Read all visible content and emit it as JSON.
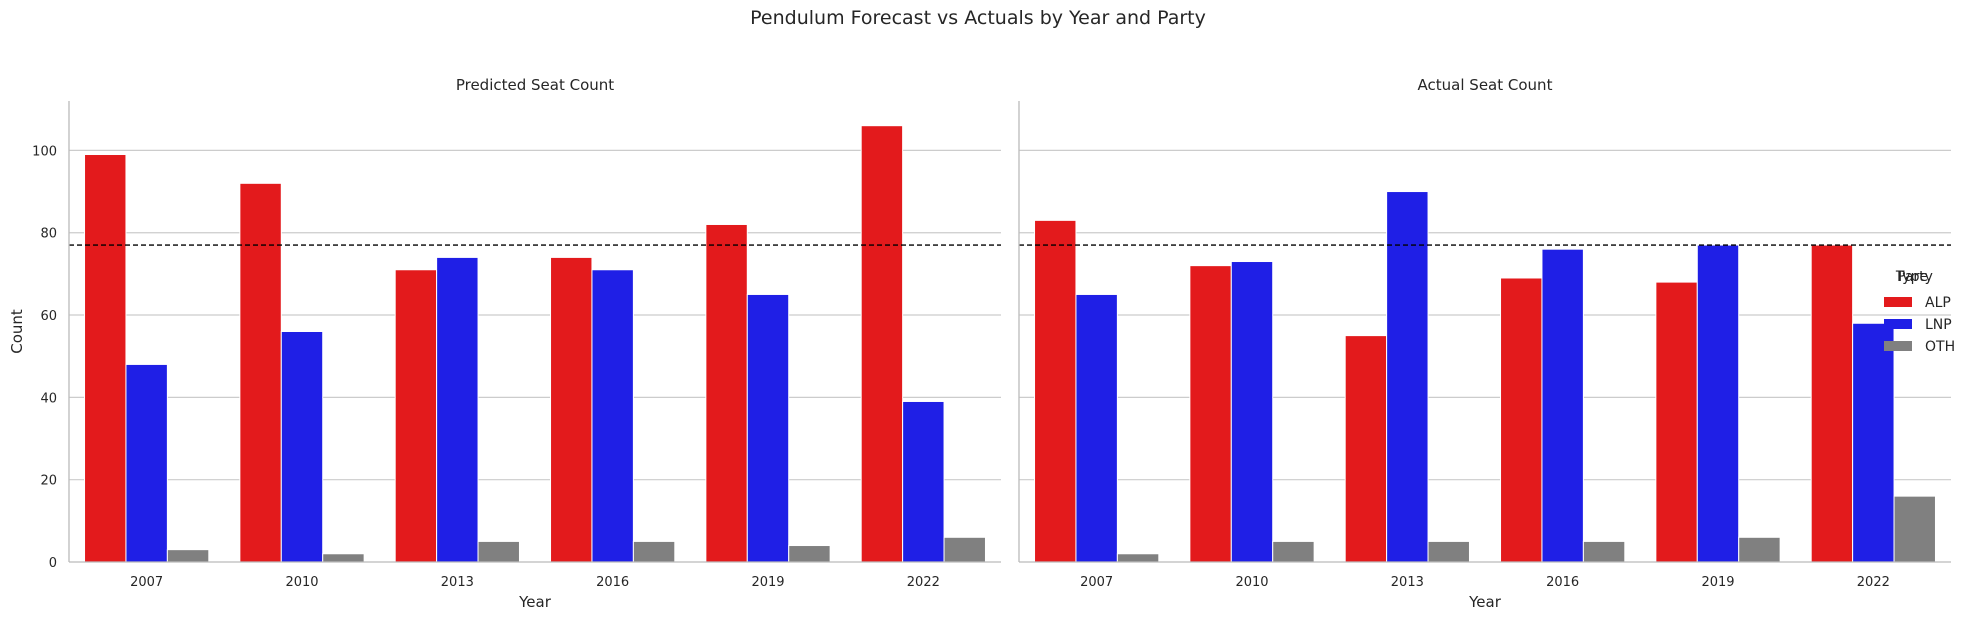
{
  "figure": {
    "title": "Pendulum Forecast vs Actuals by Year and Party"
  },
  "legend": {
    "title": "Party",
    "title_overlay": "Type",
    "placement": "center-right"
  },
  "reference_line": {
    "y": 77,
    "style": "dashed",
    "color": "#000000"
  },
  "chart_data": [
    {
      "type": "bar",
      "title": "Predicted Seat Count",
      "xlabel": "Year",
      "ylabel": "Count",
      "ylim": [
        0,
        112
      ],
      "yticks": [
        0,
        20,
        40,
        60,
        80,
        100
      ],
      "grid": true,
      "categories": [
        "2007",
        "2010",
        "2013",
        "2016",
        "2019",
        "2022"
      ],
      "series": [
        {
          "name": "ALP",
          "color": "#e31a1c",
          "values": [
            99,
            92,
            71,
            74,
            82,
            106
          ]
        },
        {
          "name": "LNP",
          "color": "#1f1fe6",
          "values": [
            48,
            56,
            74,
            71,
            65,
            39
          ]
        },
        {
          "name": "OTH",
          "color": "#808080",
          "values": [
            3,
            2,
            5,
            5,
            4,
            6
          ]
        }
      ]
    },
    {
      "type": "bar",
      "title": "Actual Seat Count",
      "xlabel": "Year",
      "ylabel": "",
      "ylim": [
        0,
        112
      ],
      "yticks": [
        0,
        20,
        40,
        60,
        80,
        100
      ],
      "grid": true,
      "categories": [
        "2007",
        "2010",
        "2013",
        "2016",
        "2019",
        "2022"
      ],
      "series": [
        {
          "name": "ALP",
          "color": "#e31a1c",
          "values": [
            83,
            72,
            55,
            69,
            68,
            77
          ]
        },
        {
          "name": "LNP",
          "color": "#1f1fe6",
          "values": [
            65,
            73,
            90,
            76,
            77,
            58
          ]
        },
        {
          "name": "OTH",
          "color": "#808080",
          "values": [
            2,
            5,
            5,
            5,
            6,
            16
          ]
        }
      ]
    }
  ]
}
